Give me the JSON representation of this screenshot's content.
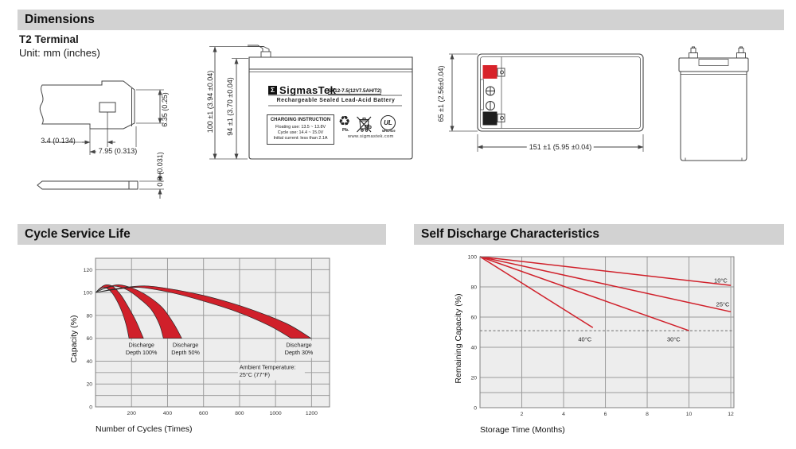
{
  "headers": {
    "dimensions": "Dimensions",
    "cycle_service_life": "Cycle Service Life",
    "self_discharge": "Self Discharge Characteristics"
  },
  "dimensions": {
    "terminal_title": "T2 Terminal",
    "unit_note": "Unit: mm (inches)",
    "terminal_view": {
      "height": "6.35 (0.25)",
      "hole_offset": "3.4 (0.134)",
      "blade_length": "7.95 (0.313)",
      "thickness": "0.8 (0.031)"
    },
    "front_view": {
      "overall_height": "100 ±1 (3.94 ±0.04)",
      "case_height": "94 ±1 (3.70 ±0.04)"
    },
    "top_view": {
      "length": "151 ±1 (5.95 ±0.04)",
      "width": "65 ±1 (2.56±0.04)"
    },
    "label": {
      "logo_glyph": "Σ",
      "brand": "SigmasTek",
      "model": "SP12-7.5(12V7.5AH/T2)",
      "battery_type": "Rechargeable Sealed Lead-Acid Battery",
      "charging_title": "CHARGING INSTRUCTION",
      "charging_line1": "Floating use: 13.5 ~ 13.8V",
      "charging_line2": "Cycle use: 14.4 ~ 15.0V",
      "charging_line3": "Initial current: less than 2.1A",
      "recycle_pb": "Pb.",
      "bin_pb": "Pb",
      "ul_text": "UL",
      "ul_code": "MH47929",
      "website": "www.sigmastek.com"
    }
  },
  "chart_data": [
    {
      "type": "area",
      "title": "Cycle Service Life",
      "xlabel": "Number of Cycles (Times)",
      "ylabel": "Capacity (%)",
      "xlim": [
        0,
        1300
      ],
      "ylim": [
        0,
        130
      ],
      "xticks": [
        200,
        400,
        600,
        800,
        1000,
        1200
      ],
      "yticks": [
        0,
        20,
        40,
        60,
        80,
        100,
        120
      ],
      "minor_ygrid": [
        10,
        30
      ],
      "grid": true,
      "legend_position": "none",
      "band_color": "#d0202a",
      "bands": [
        {
          "name": "Discharge Depth 100%",
          "upper": [
            [
              0,
              100
            ],
            [
              30,
              104.5
            ],
            [
              60,
              106.8
            ],
            [
              100,
              105
            ],
            [
              140,
              98
            ],
            [
              180,
              88
            ],
            [
              225,
              75
            ],
            [
              266,
              60
            ]
          ],
          "lower": [
            [
              0,
              100
            ],
            [
              25,
              103
            ],
            [
              50,
              104.5
            ],
            [
              85,
              101
            ],
            [
              115,
              94
            ],
            [
              145,
              84
            ],
            [
              170,
              72
            ],
            [
              186,
              60
            ]
          ]
        },
        {
          "name": "Discharge Depth 50%",
          "upper": [
            [
              0,
              100
            ],
            [
              60,
              104.5
            ],
            [
              130,
              106.8
            ],
            [
              210,
              103.5
            ],
            [
              290,
              97
            ],
            [
              370,
              87
            ],
            [
              430,
              74
            ],
            [
              479,
              60
            ]
          ],
          "lower": [
            [
              0,
              100
            ],
            [
              50,
              103.5
            ],
            [
              110,
              105.5
            ],
            [
              180,
              102
            ],
            [
              250,
              94
            ],
            [
              310,
              85
            ],
            [
              355,
              72
            ],
            [
              377,
              60
            ]
          ]
        },
        {
          "name": "Discharge Depth 30%",
          "upper": [
            [
              0,
              100
            ],
            [
              120,
              103.5
            ],
            [
              280,
              105.8
            ],
            [
              460,
              102
            ],
            [
              650,
              95.5
            ],
            [
              850,
              86
            ],
            [
              1060,
              73
            ],
            [
              1198,
              60
            ]
          ],
          "lower": [
            [
              0,
              100
            ],
            [
              100,
              102.5
            ],
            [
              240,
              104.5
            ],
            [
              420,
              100
            ],
            [
              590,
              93
            ],
            [
              780,
              83.5
            ],
            [
              960,
              71.5
            ],
            [
              1087,
              60
            ]
          ]
        }
      ],
      "annotations": [
        {
          "lines": [
            "Discharge",
            "Depth 100%"
          ],
          "x": 255,
          "y": 52.5,
          "align": "center"
        },
        {
          "lines": [
            "Discharge",
            "Depth 50%"
          ],
          "x": 500,
          "y": 52.5,
          "align": "center"
        },
        {
          "lines": [
            "Discharge",
            "Depth 30%"
          ],
          "x": 1130,
          "y": 52.5,
          "align": "center"
        },
        {
          "lines": [
            "Ambient Temperature:",
            "25°C (77°F)"
          ],
          "x": 800,
          "y": 33,
          "align": "left"
        }
      ]
    },
    {
      "type": "line",
      "title": "Self Discharge Characteristics",
      "xlabel": "Storage Time (Months)",
      "ylabel": "Remaining Capacity (%)",
      "xlim": [
        0,
        12.15
      ],
      "ylim": [
        0,
        100
      ],
      "xticks": [
        2,
        4,
        6,
        8,
        10,
        12
      ],
      "yticks": [
        0,
        20,
        40,
        60,
        80,
        100
      ],
      "minor_ygrid": [
        10
      ],
      "grid": true,
      "line_color": "#d0202a",
      "dashed_line_y": 51,
      "series": [
        {
          "name": "10°C",
          "points": [
            [
              0,
              100
            ],
            [
              12,
              81
            ]
          ],
          "label_at": [
            11.2,
            83
          ]
        },
        {
          "name": "25°C",
          "points": [
            [
              0,
              100
            ],
            [
              12,
              63.5
            ]
          ],
          "label_at": [
            11.3,
            67
          ]
        },
        {
          "name": "30°C",
          "points": [
            [
              0,
              100
            ],
            [
              10,
              51
            ]
          ],
          "label_at": [
            8.95,
            44
          ]
        },
        {
          "name": "40°C",
          "points": [
            [
              0,
              100
            ],
            [
              5.4,
              53
            ]
          ],
          "label_at": [
            4.7,
            44
          ]
        }
      ]
    }
  ]
}
